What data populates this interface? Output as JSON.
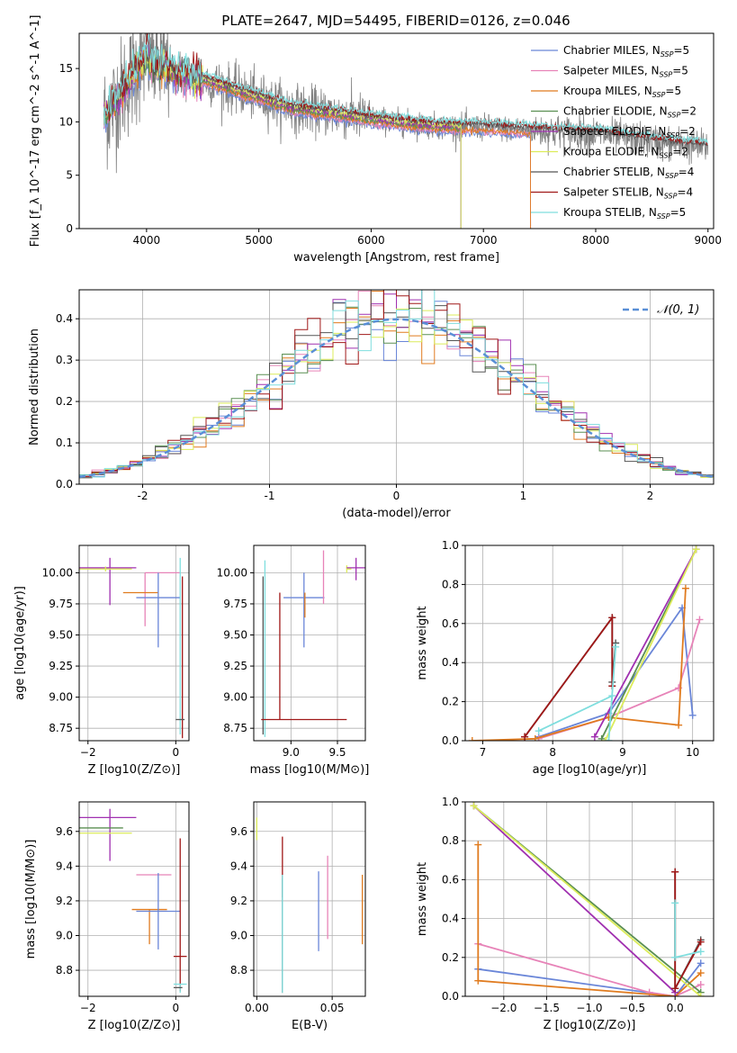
{
  "title": "PLATE=2647, MJD=54495, FIBERID=0126, z=0.046",
  "colors": {
    "Chabrier MILES": "#6a86d8",
    "Salpeter MILES": "#e783b8",
    "Kroupa MILES": "#e07b1f",
    "Chabrier ELODIE": "#5a8f52",
    "Salpeter ELODIE": "#a030b0",
    "Kroupa ELODIE": "#dcec5a",
    "Chabrier STELIB": "#555555",
    "Salpeter STELIB": "#a01818",
    "Kroupa STELIB": "#7fdede",
    "data": "#808080",
    "normal": "#5a8fd6"
  },
  "legend": [
    {
      "name": "Chabrier MILES",
      "nssp": "5"
    },
    {
      "name": "Salpeter MILES",
      "nssp": "5"
    },
    {
      "name": "Kroupa MILES",
      "nssp": "5"
    },
    {
      "name": "Chabrier ELODIE",
      "nssp": "2"
    },
    {
      "name": "Salpeter ELODIE",
      "nssp": "2"
    },
    {
      "name": "Kroupa ELODIE",
      "nssp": "2"
    },
    {
      "name": "Chabrier STELIB",
      "nssp": "4"
    },
    {
      "name": "Salpeter STELIB",
      "nssp": "4"
    },
    {
      "name": "Kroupa STELIB",
      "nssp": "5"
    }
  ],
  "chart_data": [
    {
      "panel": "spectrum",
      "type": "line",
      "xlabel": "wavelength [Angstrom, rest frame]",
      "ylabel": "Flux [f_λ 10^-17 erg cm^-2 s^-1 A^-1]",
      "xlim": [
        3400,
        9050
      ],
      "ylim": [
        0,
        18.3
      ],
      "xticks": [
        4000,
        5000,
        6000,
        7000,
        8000,
        9000
      ],
      "yticks": [
        0,
        5,
        10,
        15
      ],
      "grid": false,
      "legend_position": "top-right",
      "continuum": {
        "x": [
          3620,
          3700,
          3800,
          3900,
          4000,
          4100,
          4300,
          4500,
          4700,
          5000,
          5300,
          5600,
          6000,
          6300,
          6600,
          7000,
          7300,
          7600,
          8000,
          8400,
          8800,
          9000
        ],
        "y": [
          10.5,
          11.5,
          13.2,
          14.8,
          16.2,
          15.3,
          14.5,
          14.0,
          13.3,
          12.3,
          11.3,
          10.9,
          10.3,
          9.9,
          9.6,
          9.5,
          9.3,
          9.1,
          8.9,
          8.3,
          7.8,
          7.6
        ]
      }
    },
    {
      "panel": "residuals",
      "type": "histogram",
      "xlabel": "(data-model)/error",
      "ylabel": "Normed distribution",
      "xlim": [
        -2.5,
        2.5
      ],
      "ylim": [
        0,
        0.47
      ],
      "xticks": [
        -2,
        -1,
        0,
        1,
        2
      ],
      "yticks": [
        0.0,
        0.1,
        0.2,
        0.3,
        0.4
      ],
      "grid": true,
      "bin_width": 0.1,
      "reference": {
        "name": "𝒩(0, 1)",
        "mean": 0,
        "sigma": 1
      },
      "legend_position": "top-right"
    },
    {
      "panel": "age-Z",
      "type": "errorbar",
      "xlabel": "Z [log10(Z/Z⊙)]",
      "ylabel": "age  [log10(age/yr)]",
      "xlim": [
        -2.2,
        0.3
      ],
      "ylim": [
        8.65,
        10.22
      ],
      "xticks": [
        -2,
        0
      ],
      "yticks": [
        8.75,
        9.0,
        9.25,
        9.5,
        9.75,
        10.0
      ],
      "grid": true,
      "points": [
        {
          "series": "Salpeter ELODIE",
          "x": -1.5,
          "xerr": [
            0.7,
            0.6
          ],
          "y": 10.04,
          "yerr": [
            0.3,
            0.08
          ]
        },
        {
          "series": "Kroupa ELODIE",
          "x": -1.6,
          "xerr": [
            0.6,
            0.6
          ],
          "y": 10.03,
          "yerr": [
            0.02,
            0.02
          ]
        },
        {
          "series": "Salpeter MILES",
          "x": -0.7,
          "xerr": [
            0.0,
            0.8
          ],
          "y": 10.0,
          "yerr": [
            0.43,
            0.0
          ]
        },
        {
          "series": "Kroupa MILES",
          "x": -0.8,
          "xerr": [
            0.4,
            0.4
          ],
          "y": 9.84,
          "yerr": [
            0.0,
            0.0
          ]
        },
        {
          "series": "Chabrier MILES",
          "x": -0.4,
          "xerr": [
            0.5,
            0.5
          ],
          "y": 9.8,
          "yerr": [
            0.4,
            0.2
          ]
        },
        {
          "series": "Kroupa STELIB",
          "x": 0.1,
          "xerr": [
            0.0,
            0.0
          ],
          "y": 10.0,
          "yerr": [
            1.3,
            0.12
          ]
        },
        {
          "series": "Salpeter STELIB",
          "x": 0.15,
          "xerr": [
            0.0,
            0.0
          ],
          "y": 9.97,
          "yerr": [
            1.3,
            0.0
          ]
        },
        {
          "series": "Chabrier STELIB",
          "x": 0.1,
          "xerr": [
            0.1,
            0.1
          ],
          "y": 8.82,
          "yerr": [
            0.0,
            0.0
          ]
        }
      ]
    },
    {
      "panel": "age-mass",
      "type": "errorbar",
      "xlabel": "mass [log10(M/M⊙)]",
      "ylabel": "",
      "xlim": [
        8.6,
        9.8
      ],
      "ylim": [
        8.65,
        10.22
      ],
      "xticks": [
        9.0,
        9.5
      ],
      "yticks": [
        8.75,
        9.0,
        9.25,
        9.5,
        9.75,
        10.0
      ],
      "grid": true,
      "points": [
        {
          "series": "Kroupa STELIB",
          "x": 8.72,
          "xerr": [
            0.0,
            0.0
          ],
          "y": 10.1,
          "yerr": [
            1.42,
            0.0
          ]
        },
        {
          "series": "Chabrier STELIB",
          "x": 8.7,
          "xerr": [
            0.0,
            0.0
          ],
          "y": 9.97,
          "yerr": [
            1.27,
            0.0
          ]
        },
        {
          "series": "Chabrier MILES",
          "x": 9.14,
          "xerr": [
            0.22,
            0.22
          ],
          "y": 9.8,
          "yerr": [
            0.4,
            0.2
          ]
        },
        {
          "series": "Salpeter MILES",
          "x": 9.35,
          "xerr": [
            0.0,
            0.0
          ],
          "y": 10.0,
          "yerr": [
            0.25,
            0.18
          ]
        },
        {
          "series": "Kroupa MILES",
          "x": 9.15,
          "xerr": [
            0.0,
            0.0
          ],
          "y": 9.84,
          "yerr": [
            0.2,
            0.0
          ]
        },
        {
          "series": "Salpeter STELIB",
          "x": 8.88,
          "xerr": [
            0.2,
            0.72
          ],
          "y": 8.82,
          "yerr": [
            0.0,
            1.02
          ]
        },
        {
          "series": "Kroupa ELODIE",
          "x": 9.6,
          "xerr": [
            0.0,
            0.05
          ],
          "y": 10.03,
          "yerr": [
            0.03,
            0.03
          ]
        },
        {
          "series": "Salpeter ELODIE",
          "x": 9.7,
          "xerr": [
            0.1,
            0.1
          ],
          "y": 10.04,
          "yerr": [
            0.1,
            0.08
          ]
        }
      ]
    },
    {
      "panel": "weight-age",
      "type": "line",
      "xlabel": "age  [log10(age/yr)]",
      "ylabel": "mass weight",
      "xlim": [
        6.75,
        10.3
      ],
      "ylim": [
        0,
        1.0
      ],
      "xticks": [
        7,
        8,
        9,
        10
      ],
      "yticks": [
        0.0,
        0.2,
        0.4,
        0.6,
        0.8,
        1.0
      ],
      "grid": true,
      "series": [
        {
          "name": "Chabrier MILES",
          "x": [
            7.8,
            8.8,
            9.85,
            10.0
          ],
          "y": [
            0.02,
            0.14,
            0.68,
            0.13
          ]
        },
        {
          "name": "Salpeter MILES",
          "x": [
            7.8,
            8.8,
            9.8,
            10.1
          ],
          "y": [
            0.01,
            0.12,
            0.27,
            0.62
          ]
        },
        {
          "name": "Kroupa MILES",
          "x": [
            6.85,
            7.75,
            8.8,
            9.8,
            9.9
          ],
          "y": [
            0.0,
            0.01,
            0.12,
            0.08,
            0.78
          ]
        },
        {
          "name": "Chabrier ELODIE",
          "x": [
            8.7,
            10.05
          ],
          "y": [
            0.01,
            0.98
          ]
        },
        {
          "name": "Salpeter ELODIE",
          "x": [
            8.6,
            10.05
          ],
          "y": [
            0.02,
            0.98
          ]
        },
        {
          "name": "Kroupa ELODIE",
          "x": [
            8.75,
            10.05
          ],
          "y": [
            0.0,
            0.98
          ]
        },
        {
          "name": "Chabrier STELIB",
          "x": [
            7.6,
            8.85,
            8.85,
            8.9
          ],
          "y": [
            0.02,
            0.63,
            0.3,
            0.5
          ]
        },
        {
          "name": "Salpeter STELIB",
          "x": [
            7.6,
            8.85,
            8.85
          ],
          "y": [
            0.02,
            0.63,
            0.28
          ]
        },
        {
          "name": "Kroupa STELIB",
          "x": [
            7.8,
            8.85,
            8.8,
            8.9
          ],
          "y": [
            0.05,
            0.23,
            0.0,
            0.48
          ]
        }
      ]
    },
    {
      "panel": "mass-Z",
      "type": "errorbar",
      "xlabel": "Z [log10(Z/Z⊙)]",
      "ylabel": "mass [log10(M/M⊙)]",
      "xlim": [
        -2.2,
        0.3
      ],
      "ylim": [
        8.65,
        9.77
      ],
      "xticks": [
        -2,
        0
      ],
      "yticks": [
        8.8,
        9.0,
        9.2,
        9.4,
        9.6
      ],
      "grid": true,
      "points": [
        {
          "series": "Salpeter ELODIE",
          "x": -1.5,
          "xerr": [
            0.7,
            0.6
          ],
          "y": 9.68,
          "yerr": [
            0.25,
            0.05
          ]
        },
        {
          "series": "Chabrier ELODIE",
          "x": -1.6,
          "xerr": [
            0.6,
            0.4
          ],
          "y": 9.62,
          "yerr": [
            0.0,
            0.0
          ]
        },
        {
          "series": "Kroupa ELODIE",
          "x": -1.6,
          "xerr": [
            0.6,
            0.6
          ],
          "y": 9.59,
          "yerr": [
            0.0,
            0.0
          ]
        },
        {
          "series": "Salpeter MILES",
          "x": -0.5,
          "xerr": [
            0.4,
            0.4
          ],
          "y": 9.35,
          "yerr": [
            0.0,
            0.0
          ]
        },
        {
          "series": "Kroupa MILES",
          "x": -0.6,
          "xerr": [
            0.4,
            0.4
          ],
          "y": 9.15,
          "yerr": [
            0.2,
            0.0
          ]
        },
        {
          "series": "Chabrier MILES",
          "x": -0.4,
          "xerr": [
            0.5,
            0.5
          ],
          "y": 9.14,
          "yerr": [
            0.22,
            0.22
          ]
        },
        {
          "series": "Salpeter STELIB",
          "x": 0.1,
          "xerr": [
            0.15,
            0.15
          ],
          "y": 8.88,
          "yerr": [
            0.2,
            0.68
          ]
        },
        {
          "series": "Kroupa STELIB",
          "x": 0.1,
          "xerr": [
            0.15,
            0.15
          ],
          "y": 8.72,
          "yerr": [
            0.05,
            0.0
          ]
        },
        {
          "series": "Chabrier STELIB",
          "x": 0.05,
          "xerr": [
            0.1,
            0.1
          ],
          "y": 8.7,
          "yerr": [
            0.0,
            0.0
          ]
        }
      ]
    },
    {
      "panel": "mass-ebv",
      "type": "errorbar",
      "xlabel": "E(B-V)",
      "ylabel": "",
      "xlim": [
        -0.002,
        0.072
      ],
      "ylim": [
        8.65,
        9.77
      ],
      "xticks": [
        0.0,
        0.05
      ],
      "yticks": [
        8.8,
        9.0,
        9.2,
        9.4,
        9.6
      ],
      "grid": true,
      "points": [
        {
          "series": "Kroupa ELODIE",
          "x": 0.0,
          "xerr": [
            0.0,
            0.0
          ],
          "y": 9.6,
          "yerr": [
            0.05,
            0.08
          ]
        },
        {
          "series": "Salpeter STELIB",
          "x": 0.017,
          "xerr": [
            0.0,
            0.0
          ],
          "y": 9.42,
          "yerr": [
            0.2,
            0.15
          ]
        },
        {
          "series": "Chabrier STELIB",
          "x": 0.017,
          "xerr": [
            0.0,
            0.0
          ],
          "y": 9.0,
          "yerr": [
            0.33,
            0.33
          ]
        },
        {
          "series": "Kroupa STELIB",
          "x": 0.017,
          "xerr": [
            0.0,
            0.0
          ],
          "y": 9.0,
          "yerr": [
            0.33,
            0.35
          ]
        },
        {
          "series": "Chabrier MILES",
          "x": 0.041,
          "xerr": [
            0.0,
            0.0
          ],
          "y": 9.14,
          "yerr": [
            0.23,
            0.23
          ]
        },
        {
          "series": "Salpeter MILES",
          "x": 0.047,
          "xerr": [
            0.0,
            0.0
          ],
          "y": 9.22,
          "yerr": [
            0.24,
            0.24
          ]
        },
        {
          "series": "Kroupa MILES",
          "x": 0.07,
          "xerr": [
            0.0,
            0.0
          ],
          "y": 9.15,
          "yerr": [
            0.2,
            0.2
          ]
        }
      ]
    },
    {
      "panel": "weight-Z",
      "type": "line",
      "xlabel": "Z [log10(Z/Z⊙)]",
      "ylabel": "mass weight",
      "xlim": [
        -2.45,
        0.45
      ],
      "ylim": [
        0,
        1.0
      ],
      "xticks": [
        -2.0,
        -1.5,
        -1.0,
        -0.5,
        0.0
      ],
      "yticks": [
        0.0,
        0.2,
        0.4,
        0.6,
        0.8,
        1.0
      ],
      "grid": true,
      "series": [
        {
          "name": "Chabrier MILES",
          "x": [
            -2.3,
            0.0,
            0.3
          ],
          "y": [
            0.14,
            0.0,
            0.17
          ]
        },
        {
          "name": "Salpeter MILES",
          "x": [
            -2.3,
            -0.3,
            0.0,
            0.3
          ],
          "y": [
            0.27,
            0.02,
            0.0,
            0.06
          ]
        },
        {
          "name": "Kroupa MILES",
          "x": [
            -2.3,
            -2.3,
            0.0,
            0.3
          ],
          "y": [
            0.78,
            0.08,
            0.0,
            0.12
          ]
        },
        {
          "name": "Chabrier ELODIE",
          "x": [
            -2.35,
            0.3
          ],
          "y": [
            0.98,
            0.02
          ]
        },
        {
          "name": "Salpeter ELODIE",
          "x": [
            -2.35,
            0.0
          ],
          "y": [
            0.98,
            0.02
          ]
        },
        {
          "name": "Kroupa ELODIE",
          "x": [
            -2.35,
            0.3
          ],
          "y": [
            0.98,
            0.0
          ]
        },
        {
          "name": "Chabrier STELIB",
          "x": [
            0.0,
            0.0,
            0.3
          ],
          "y": [
            0.64,
            0.04,
            0.29
          ]
        },
        {
          "name": "Salpeter STELIB",
          "x": [
            0.0,
            0.0,
            0.3
          ],
          "y": [
            0.64,
            0.04,
            0.28
          ]
        },
        {
          "name": "Kroupa STELIB",
          "x": [
            0.0,
            0.0,
            0.3
          ],
          "y": [
            0.48,
            0.2,
            0.23
          ]
        }
      ]
    }
  ]
}
